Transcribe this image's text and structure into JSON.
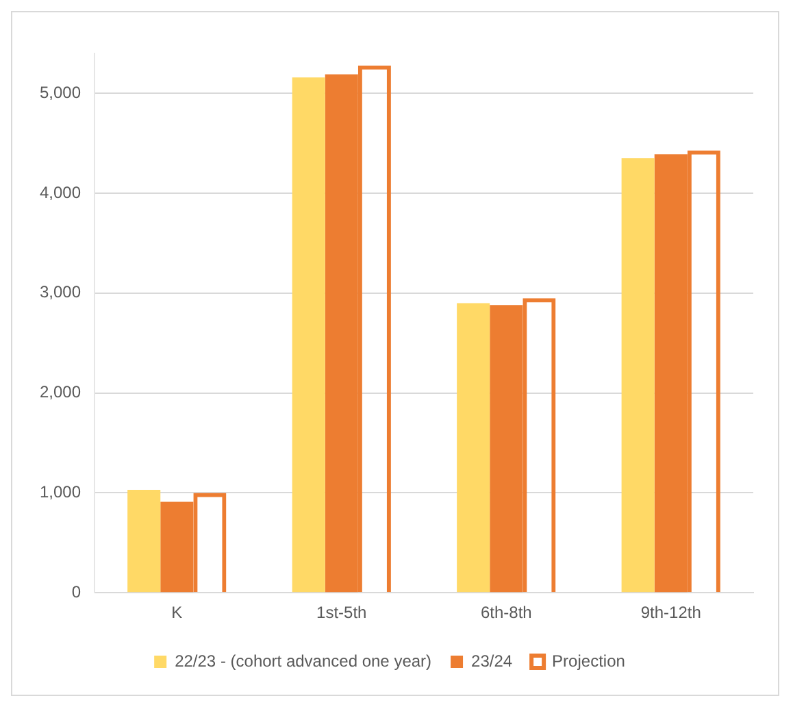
{
  "chart_data": {
    "type": "bar",
    "categories": [
      "K",
      "1st-5th",
      "6th-8th",
      "9th-12th"
    ],
    "series": [
      {
        "name": "22/23 - (cohort advanced one year)",
        "color": "#ffd966",
        "values": [
          1030,
          5160,
          2900,
          4350
        ]
      },
      {
        "name": "23/24",
        "color": "#ed7d31",
        "values": [
          910,
          5190,
          2880,
          4390
        ]
      },
      {
        "name": "Projection",
        "color": "#ed7d31",
        "values": [
          1000,
          5280,
          2950,
          4430
        ]
      }
    ],
    "yticks": [
      0,
      {
        "value": 1000,
        "label": "1,000"
      },
      {
        "value": 2000,
        "label": "2,000"
      },
      {
        "value": 3000,
        "label": "3,000"
      },
      {
        "value": 4000,
        "label": "4,000"
      },
      {
        "value": 5000,
        "label": "5,000"
      }
    ],
    "ylim": [
      0,
      5400
    ],
    "grid": "y",
    "legend": "bottom"
  }
}
